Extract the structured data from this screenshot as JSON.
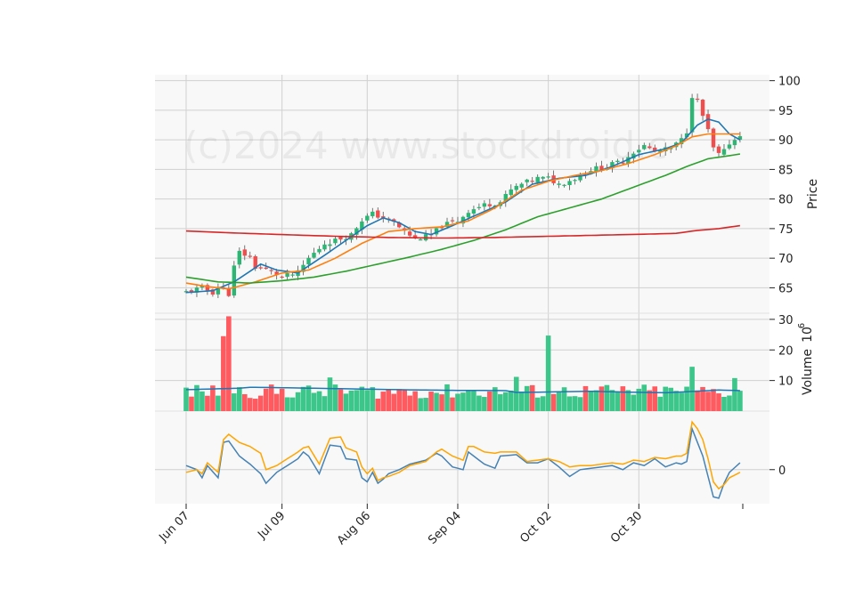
{
  "watermark": "(c)2024 www.stockdroid.c",
  "colors": {
    "up": "#2bb673",
    "down": "#f24c4c",
    "vol_up": "#3cc68a",
    "vol_down": "#ff5a5f",
    "ma_fast": "#1f77b4",
    "ma_mid": "#ff7f0e",
    "ma_slow": "#2ca02c",
    "ma_long": "#d62728",
    "vol_ma": "#1f77b4",
    "osc_line": "#4682b4",
    "osc_signal": "#ffa500",
    "panel_bg": "#f8f8f8",
    "grid": "#d0d0d0"
  },
  "chart_data": [
    {
      "type": "candlestick",
      "panel": "price",
      "ylabel": "Price",
      "ylim": [
        60.7,
        101
      ],
      "yticks": [
        "65",
        "70",
        "75",
        "80",
        "85",
        "90",
        "95",
        "100"
      ],
      "xtick_labels": [
        "Jun 07",
        "Jul 09",
        "Aug 06",
        "Sep 04",
        "Oct 02",
        "Oct 30"
      ],
      "anchors": [
        [
          0,
          64.3
        ],
        [
          3,
          65.0
        ],
        [
          5,
          64.2
        ],
        [
          6,
          65.2
        ],
        [
          8,
          64.0
        ],
        [
          9,
          68.5
        ],
        [
          10,
          71.0
        ],
        [
          12,
          70.2
        ],
        [
          13,
          68.5
        ],
        [
          16,
          67.8
        ],
        [
          18,
          66.8
        ],
        [
          21,
          67.5
        ],
        [
          23,
          70.0
        ],
        [
          26,
          72.5
        ],
        [
          28,
          73.0
        ],
        [
          31,
          74.0
        ],
        [
          33,
          76.5
        ],
        [
          35,
          77.5
        ],
        [
          37,
          76.8
        ],
        [
          39,
          76.0
        ],
        [
          41,
          74.5
        ],
        [
          43,
          73.3
        ],
        [
          46,
          73.8
        ],
        [
          48,
          75.5
        ],
        [
          51,
          76.3
        ],
        [
          53,
          78.0
        ],
        [
          56,
          79.0
        ],
        [
          59,
          79.5
        ],
        [
          61,
          81.5
        ],
        [
          63,
          82.5
        ],
        [
          66,
          83.5
        ],
        [
          68,
          83.5
        ],
        [
          70,
          82.5
        ],
        [
          73,
          83.5
        ],
        [
          76,
          85.0
        ],
        [
          79,
          85.5
        ],
        [
          82,
          86.5
        ],
        [
          84,
          88.0
        ],
        [
          86,
          89.0
        ],
        [
          88,
          88.0
        ],
        [
          91,
          88.5
        ],
        [
          93,
          90.0
        ],
        [
          94,
          91.5
        ],
        [
          95,
          97.5
        ],
        [
          96,
          96.5
        ],
        [
          97,
          94.0
        ],
        [
          98,
          91.5
        ],
        [
          99,
          88.5
        ],
        [
          100,
          87.5
        ],
        [
          101,
          88.0
        ],
        [
          102,
          89.5
        ],
        [
          103,
          90.0
        ],
        [
          104,
          91.0
        ]
      ],
      "moving_averages": [
        {
          "color_key": "ma_fast",
          "points": [
            [
              0,
              64.2
            ],
            [
              5,
              64.5
            ],
            [
              9,
              66.0
            ],
            [
              14,
              69.0
            ],
            [
              17,
              68.0
            ],
            [
              21,
              67.5
            ],
            [
              26,
              70.5
            ],
            [
              30,
              73.0
            ],
            [
              34,
              75.5
            ],
            [
              37,
              76.8
            ],
            [
              40,
              76.0
            ],
            [
              43,
              74.5
            ],
            [
              46,
              74.0
            ],
            [
              50,
              75.5
            ],
            [
              55,
              77.5
            ],
            [
              60,
              79.5
            ],
            [
              65,
              82.5
            ],
            [
              70,
              83.5
            ],
            [
              75,
              84.0
            ],
            [
              80,
              85.5
            ],
            [
              85,
              87.5
            ],
            [
              90,
              88.5
            ],
            [
              93,
              89.5
            ],
            [
              96,
              92.5
            ],
            [
              98,
              93.5
            ],
            [
              100,
              93.0
            ],
            [
              102,
              91.0
            ],
            [
              104,
              90.0
            ]
          ]
        },
        {
          "color_key": "ma_mid",
          "points": [
            [
              0,
              65.8
            ],
            [
              4,
              65.2
            ],
            [
              8,
              64.8
            ],
            [
              13,
              66.0
            ],
            [
              18,
              67.5
            ],
            [
              23,
              68.0
            ],
            [
              28,
              70.0
            ],
            [
              33,
              72.5
            ],
            [
              38,
              74.5
            ],
            [
              43,
              75.0
            ],
            [
              48,
              75.3
            ],
            [
              53,
              76.3
            ],
            [
              58,
              78.5
            ],
            [
              63,
              81.5
            ],
            [
              68,
              83.0
            ],
            [
              73,
              84.0
            ],
            [
              78,
              84.8
            ],
            [
              83,
              86.0
            ],
            [
              88,
              87.5
            ],
            [
              92,
              89.0
            ],
            [
              95,
              90.5
            ],
            [
              98,
              91.0
            ],
            [
              104,
              91.0
            ]
          ]
        },
        {
          "color_key": "ma_slow",
          "points": [
            [
              0,
              66.8
            ],
            [
              6,
              66.0
            ],
            [
              12,
              65.8
            ],
            [
              18,
              66.2
            ],
            [
              24,
              66.8
            ],
            [
              30,
              67.8
            ],
            [
              36,
              69.0
            ],
            [
              42,
              70.2
            ],
            [
              48,
              71.5
            ],
            [
              54,
              73.0
            ],
            [
              60,
              74.8
            ],
            [
              66,
              77.0
            ],
            [
              72,
              78.5
            ],
            [
              78,
              80.0
            ],
            [
              84,
              82.0
            ],
            [
              90,
              84.0
            ],
            [
              94,
              85.5
            ],
            [
              98,
              86.8
            ],
            [
              104,
              87.6
            ]
          ]
        },
        {
          "color_key": "ma_long",
          "points": [
            [
              0,
              74.6
            ],
            [
              8,
              74.3
            ],
            [
              18,
              74.0
            ],
            [
              28,
              73.7
            ],
            [
              38,
              73.5
            ],
            [
              48,
              73.4
            ],
            [
              58,
              73.5
            ],
            [
              68,
              73.7
            ],
            [
              78,
              73.9
            ],
            [
              88,
              74.1
            ],
            [
              92,
              74.2
            ],
            [
              96,
              74.7
            ],
            [
              100,
              75.0
            ],
            [
              104,
              75.5
            ]
          ]
        }
      ]
    },
    {
      "type": "bar",
      "panel": "volume",
      "ylabel": "Volume",
      "scale_label": "10",
      "scale_exponent": "6",
      "ylim": [
        0,
        32
      ],
      "yticks": [
        "10",
        "20",
        "30"
      ],
      "vol_ma": [
        [
          0,
          7.0
        ],
        [
          10,
          7.5
        ],
        [
          12,
          7.8
        ],
        [
          20,
          7.6
        ],
        [
          30,
          7.3
        ],
        [
          40,
          7.0
        ],
        [
          50,
          6.8
        ],
        [
          60,
          6.7
        ],
        [
          62,
          6.1
        ],
        [
          70,
          6.3
        ],
        [
          76,
          6.5
        ],
        [
          80,
          6.3
        ],
        [
          90,
          6.0
        ],
        [
          96,
          6.5
        ],
        [
          100,
          6.9
        ],
        [
          104,
          6.7
        ]
      ],
      "spikes": [
        [
          7,
          24.5
        ],
        [
          8,
          31.0
        ],
        [
          27,
          11.0
        ],
        [
          62,
          11.2
        ],
        [
          68,
          24.7
        ],
        [
          95,
          14.5
        ],
        [
          103,
          10.8
        ]
      ]
    },
    {
      "type": "line",
      "panel": "oscillator",
      "ylim": [
        -2.5,
        4.3
      ],
      "yticks": [
        "0"
      ],
      "series": [
        {
          "color_key": "osc_line",
          "points": [
            [
              0,
              0.3
            ],
            [
              2,
              0.0
            ],
            [
              3,
              -0.6
            ],
            [
              4,
              0.3
            ],
            [
              6,
              -0.6
            ],
            [
              7,
              2.0
            ],
            [
              8,
              2.1
            ],
            [
              10,
              1.0
            ],
            [
              12,
              0.4
            ],
            [
              14,
              -0.3
            ],
            [
              15,
              -1.0
            ],
            [
              17,
              -0.2
            ],
            [
              19,
              0.3
            ],
            [
              21,
              0.8
            ],
            [
              22,
              1.3
            ],
            [
              23,
              1.0
            ],
            [
              25,
              -0.3
            ],
            [
              27,
              1.8
            ],
            [
              29,
              1.7
            ],
            [
              30,
              0.8
            ],
            [
              32,
              0.7
            ],
            [
              33,
              -0.6
            ],
            [
              34,
              -0.9
            ],
            [
              35,
              -0.2
            ],
            [
              36,
              -1.0
            ],
            [
              37,
              -0.7
            ],
            [
              38,
              -0.3
            ],
            [
              40,
              0.0
            ],
            [
              42,
              0.4
            ],
            [
              45,
              0.7
            ],
            [
              47,
              1.2
            ],
            [
              48,
              1.0
            ],
            [
              50,
              0.2
            ],
            [
              52,
              0.0
            ],
            [
              53,
              1.3
            ],
            [
              54,
              1.0
            ],
            [
              56,
              0.4
            ],
            [
              58,
              0.1
            ],
            [
              59,
              1.0
            ],
            [
              62,
              1.1
            ],
            [
              64,
              0.5
            ],
            [
              66,
              0.5
            ],
            [
              68,
              0.8
            ],
            [
              70,
              0.2
            ],
            [
              72,
              -0.5
            ],
            [
              74,
              0.0
            ],
            [
              76,
              0.1
            ],
            [
              78,
              0.2
            ],
            [
              80,
              0.3
            ],
            [
              82,
              0.0
            ],
            [
              84,
              0.5
            ],
            [
              86,
              0.3
            ],
            [
              88,
              0.8
            ],
            [
              90,
              0.2
            ],
            [
              92,
              0.5
            ],
            [
              93,
              0.4
            ],
            [
              94,
              0.6
            ],
            [
              95,
              3.0
            ],
            [
              96,
              2.0
            ],
            [
              97,
              1.0
            ],
            [
              98,
              -0.5
            ],
            [
              99,
              -2.0
            ],
            [
              100,
              -2.1
            ],
            [
              101,
              -1.0
            ],
            [
              102,
              -0.2
            ],
            [
              104,
              0.5
            ]
          ]
        },
        {
          "color_key": "osc_signal",
          "points": [
            [
              0,
              -0.2
            ],
            [
              2,
              0.0
            ],
            [
              3,
              -0.3
            ],
            [
              4,
              0.5
            ],
            [
              6,
              -0.2
            ],
            [
              7,
              2.2
            ],
            [
              8,
              2.6
            ],
            [
              10,
              2.0
            ],
            [
              12,
              1.7
            ],
            [
              14,
              1.2
            ],
            [
              15,
              0.0
            ],
            [
              17,
              0.3
            ],
            [
              19,
              0.8
            ],
            [
              21,
              1.3
            ],
            [
              22,
              1.6
            ],
            [
              23,
              1.7
            ],
            [
              25,
              0.4
            ],
            [
              27,
              2.3
            ],
            [
              29,
              2.4
            ],
            [
              30,
              1.6
            ],
            [
              32,
              1.3
            ],
            [
              33,
              0.2
            ],
            [
              34,
              -0.3
            ],
            [
              35,
              0.1
            ],
            [
              36,
              -0.8
            ],
            [
              37,
              -0.6
            ],
            [
              38,
              -0.5
            ],
            [
              40,
              -0.2
            ],
            [
              42,
              0.3
            ],
            [
              45,
              0.6
            ],
            [
              47,
              1.3
            ],
            [
              48,
              1.5
            ],
            [
              50,
              1.0
            ],
            [
              52,
              0.7
            ],
            [
              53,
              1.7
            ],
            [
              54,
              1.7
            ],
            [
              56,
              1.3
            ],
            [
              58,
              1.2
            ],
            [
              59,
              1.3
            ],
            [
              62,
              1.3
            ],
            [
              64,
              0.6
            ],
            [
              66,
              0.7
            ],
            [
              68,
              0.8
            ],
            [
              70,
              0.6
            ],
            [
              72,
              0.2
            ],
            [
              74,
              0.3
            ],
            [
              76,
              0.3
            ],
            [
              78,
              0.4
            ],
            [
              80,
              0.5
            ],
            [
              82,
              0.4
            ],
            [
              84,
              0.7
            ],
            [
              86,
              0.6
            ],
            [
              88,
              0.9
            ],
            [
              90,
              0.8
            ],
            [
              92,
              1.0
            ],
            [
              93,
              1.0
            ],
            [
              94,
              1.2
            ],
            [
              95,
              3.5
            ],
            [
              96,
              3.0
            ],
            [
              97,
              2.2
            ],
            [
              98,
              0.8
            ],
            [
              99,
              -0.9
            ],
            [
              100,
              -1.4
            ],
            [
              101,
              -1.1
            ],
            [
              102,
              -0.6
            ],
            [
              104,
              -0.2
            ]
          ]
        }
      ]
    }
  ]
}
